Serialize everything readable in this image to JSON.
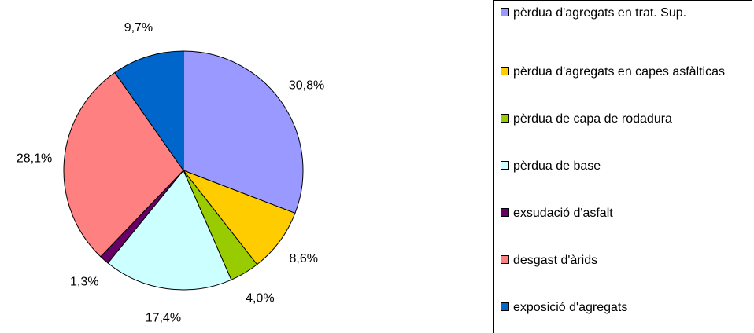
{
  "chart_data": {
    "type": "pie",
    "categories": [
      "pèrdua d'agregats en trat. Sup.",
      "pèrdua d'agregats en capes asfàlticas",
      "pèrdua de capa de rodadura",
      "pèrdua de base",
      "exsudació d'asfalt",
      "desgast d'àrids",
      "exposició d'agregats"
    ],
    "values": [
      30.8,
      8.6,
      4.0,
      17.4,
      1.3,
      28.1,
      9.7
    ],
    "value_labels": [
      "30,8%",
      "8,6%",
      "4,0%",
      "17,4%",
      "1,3%",
      "28,1%",
      "9,7%"
    ],
    "colors": [
      "#9999ff",
      "#ffcc00",
      "#99cc00",
      "#ccffff",
      "#660066",
      "#ff8080",
      "#0066cc"
    ],
    "legend": "right"
  }
}
